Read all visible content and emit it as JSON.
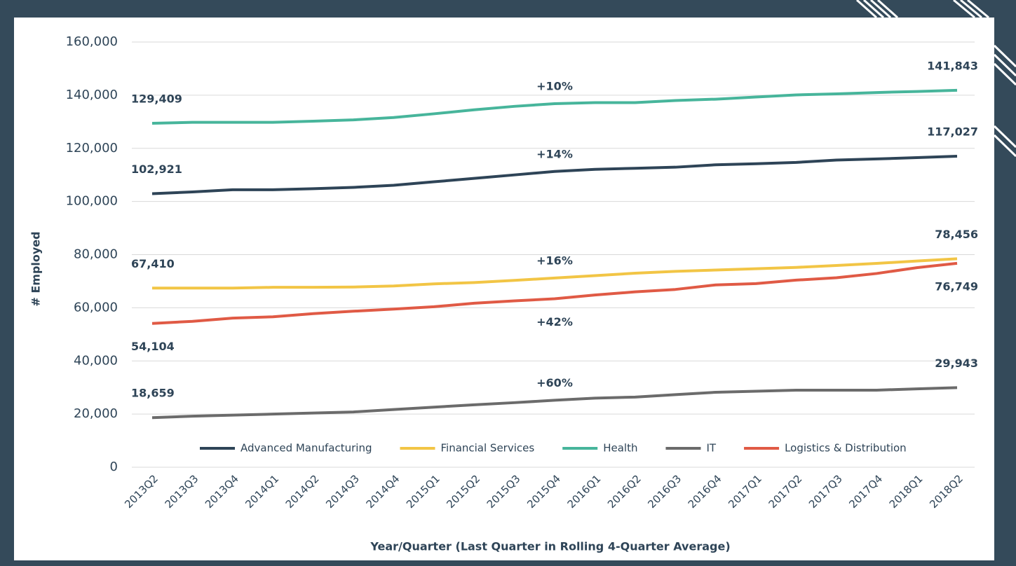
{
  "chart_data": {
    "type": "line",
    "x_label": "Year/Quarter (Last Quarter in Rolling 4-Quarter Average)",
    "y_label": "# Employed",
    "categories": [
      "2013Q2",
      "2013Q3",
      "2013Q4",
      "2014Q1",
      "2014Q2",
      "2014Q3",
      "2014Q4",
      "2015Q1",
      "2015Q2",
      "2015Q3",
      "2015Q4",
      "2016Q1",
      "2016Q2",
      "2016Q3",
      "2016Q4",
      "2017Q1",
      "2017Q2",
      "2017Q3",
      "2017Q4",
      "2018Q1",
      "2018Q2"
    ],
    "ylim": [
      0,
      160000
    ],
    "yticks": [
      0,
      {
        "value": 20000,
        "label": "20,000"
      },
      {
        "value": 40000,
        "label": "40,000"
      },
      {
        "value": 60000,
        "label": "60,000"
      },
      {
        "value": 80000,
        "label": "80,000"
      },
      {
        "value": 100000,
        "label": "100,000"
      },
      {
        "value": 120000,
        "label": "120,000"
      },
      {
        "value": 140000,
        "label": "140,000"
      },
      {
        "value": 160000,
        "label": "160,000"
      }
    ],
    "grid": true,
    "legend": "bottom",
    "series": [
      {
        "name": "Advanced Manufacturing",
        "color": "#2e4457",
        "change": "+14%",
        "values": [
          102921,
          103600,
          104400,
          104400,
          104800,
          105300,
          106100,
          107400,
          108700,
          110000,
          111300,
          112100,
          112500,
          112900,
          113800,
          114200,
          114700,
          115600,
          116000,
          116500,
          117027
        ],
        "value_labels": [
          "102,921",
          null,
          null,
          null,
          null,
          null,
          null,
          null,
          null,
          null,
          null,
          null,
          null,
          null,
          null,
          null,
          null,
          null,
          null,
          null,
          "117,027"
        ]
      },
      {
        "name": "Financial Services",
        "color": "#f2c545",
        "change": "+16%",
        "values": [
          67410,
          67400,
          67400,
          67700,
          67700,
          67800,
          68200,
          69000,
          69500,
          70300,
          71200,
          72100,
          73000,
          73700,
          74200,
          74700,
          75200,
          75900,
          76700,
          77600,
          78456
        ],
        "value_labels": [
          "67,410",
          null,
          null,
          null,
          null,
          null,
          null,
          null,
          null,
          null,
          null,
          null,
          null,
          null,
          null,
          null,
          null,
          null,
          null,
          null,
          "78,456"
        ]
      },
      {
        "name": "Health",
        "color": "#47b59b",
        "change": "+10%",
        "values": [
          129409,
          129800,
          129800,
          129800,
          130200,
          130700,
          131600,
          133000,
          134500,
          135800,
          136800,
          137200,
          137200,
          138000,
          138500,
          139300,
          140100,
          140500,
          141000,
          141400,
          141843
        ],
        "value_labels": [
          "129,409",
          null,
          null,
          null,
          null,
          null,
          null,
          null,
          null,
          null,
          null,
          null,
          null,
          null,
          null,
          null,
          null,
          null,
          null,
          null,
          "141,843"
        ]
      },
      {
        "name": "IT",
        "color": "#6b6b6b",
        "change": "+60%",
        "values": [
          18659,
          19200,
          19600,
          20000,
          20400,
          20800,
          21700,
          22600,
          23500,
          24300,
          25200,
          26000,
          26400,
          27300,
          28200,
          28600,
          29000,
          29000,
          29000,
          29500,
          29943
        ],
        "value_labels": [
          "18,659",
          null,
          null,
          null,
          null,
          null,
          null,
          null,
          null,
          null,
          null,
          null,
          null,
          null,
          null,
          null,
          null,
          null,
          null,
          null,
          "29,943"
        ]
      },
      {
        "name": "Logistics & Distribution",
        "color": "#e05a45",
        "change": "+42%",
        "values": [
          54104,
          54900,
          56100,
          56600,
          57800,
          58700,
          59500,
          60400,
          61700,
          62600,
          63400,
          64800,
          66000,
          66900,
          68600,
          69100,
          70400,
          71300,
          72900,
          75100,
          76749
        ],
        "value_labels": [
          "54,104",
          null,
          null,
          null,
          null,
          null,
          null,
          null,
          null,
          null,
          null,
          null,
          null,
          null,
          null,
          null,
          null,
          null,
          null,
          null,
          "76,749"
        ]
      }
    ]
  }
}
